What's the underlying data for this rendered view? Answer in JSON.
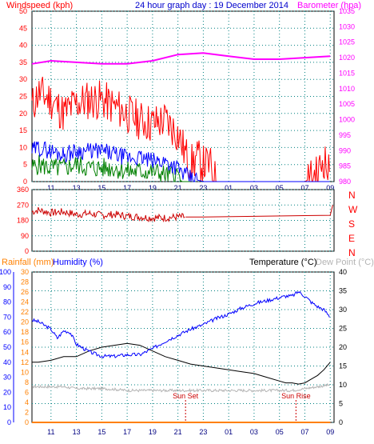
{
  "colors": {
    "windspeed": "#ff0000",
    "gust": "#ff0000",
    "avg_wind": "#0000ff",
    "wind_low": "#008000",
    "barometer": "#ff00ff",
    "direction": "#cc0000",
    "humidity": "#0000ff",
    "temperature": "#000000",
    "dew_point": "#b4b4b4",
    "rainfall": "#ff8000",
    "rainfall_axis": "#ff8000",
    "humidity_axis": "#0000ff",
    "direction_axis": "#ff0000",
    "sun_marker": "#cc0000",
    "grid": "#008080"
  },
  "chart_data": [
    {
      "type": "line",
      "panel": "wind",
      "title": "24 hour graph day : 19 December 2014",
      "ylabel_left": "Windspeed (kph)",
      "ylabel_right": "Barometer (hpa)",
      "x_ticks": [
        "11",
        "13",
        "15",
        "17",
        "19",
        "21",
        "23",
        "01",
        "03",
        "05",
        "07",
        "09"
      ],
      "y_left_ticks": [
        "0",
        "5",
        "10",
        "15",
        "20",
        "25",
        "30",
        "35",
        "40",
        "45",
        "50"
      ],
      "y_left_range": [
        0,
        50
      ],
      "y_right_ticks": [
        "980",
        "985",
        "990",
        "995",
        "1000",
        "1005",
        "1010",
        "1015",
        "1020",
        "1025",
        "1030",
        "1035"
      ],
      "y_right_range": [
        980,
        1035
      ],
      "grid": true,
      "series": [
        {
          "key": "gust",
          "hours": [
            9.5,
            10,
            11,
            12,
            13,
            14,
            15,
            16,
            17,
            18,
            19,
            20,
            21,
            21.6,
            22,
            22.5,
            23,
            23.5,
            24,
            25,
            26,
            27,
            28,
            29,
            30,
            31,
            32,
            32.5,
            33
          ],
          "values": [
            22,
            26,
            24,
            20,
            23,
            24,
            24,
            22,
            20,
            18,
            17,
            18,
            14,
            8,
            5,
            7,
            5,
            5,
            0,
            0,
            0,
            0,
            0,
            0,
            0,
            0,
            2,
            7,
            1
          ]
        },
        {
          "key": "avg_wind",
          "hours": [
            9.5,
            10,
            11,
            12,
            13,
            14,
            15,
            16,
            17,
            18,
            19,
            20,
            21,
            21.5,
            22,
            22.5,
            23,
            24,
            33
          ],
          "values": [
            9,
            10,
            9,
            8,
            9,
            9,
            9,
            8,
            7,
            7,
            6,
            6,
            4,
            2,
            1,
            0.5,
            0,
            0,
            0
          ]
        },
        {
          "key": "wind_low",
          "hours": [
            9.5,
            10,
            11,
            12,
            13,
            14,
            15,
            16,
            17,
            18,
            19,
            20,
            21,
            21.3,
            22
          ],
          "values": [
            4,
            5,
            4,
            4,
            5,
            4,
            4,
            4,
            3,
            3,
            3,
            2,
            2,
            0,
            0
          ]
        },
        {
          "key": "barometer",
          "axis": "right",
          "hours": [
            9.5,
            11,
            13,
            15,
            17,
            19,
            21,
            23,
            25,
            27,
            29,
            31,
            33
          ],
          "values": [
            1018,
            1019,
            1018.5,
            1018,
            1018,
            1019,
            1021,
            1021.5,
            1020.5,
            1019.5,
            1019.5,
            1020,
            1020.5
          ]
        }
      ]
    },
    {
      "type": "line",
      "panel": "direction",
      "y_ticks": [
        "0",
        "90",
        "180",
        "270",
        "360"
      ],
      "y_range": [
        0,
        360
      ],
      "compass_labels": [
        "N",
        "W",
        "S",
        "E",
        "N"
      ],
      "x_ticks": [
        "11",
        "13",
        "15",
        "17",
        "19",
        "21",
        "23",
        "01",
        "03",
        "05",
        "07",
        "09"
      ],
      "series": [
        {
          "key": "direction",
          "hours": [
            9.5,
            10,
            11,
            12,
            13,
            14,
            15,
            16,
            17,
            18,
            19,
            20,
            21,
            21.6,
            23,
            33,
            33.2
          ],
          "values": [
            230,
            240,
            225,
            230,
            215,
            220,
            210,
            215,
            205,
            200,
            195,
            195,
            200,
            200,
            200,
            210,
            270
          ]
        }
      ]
    },
    {
      "type": "line",
      "panel": "temperature",
      "ylabel_rainfall": "Rainfall (mm)",
      "ylabel_humidity": "Humidity (%)",
      "ylabel_temperature": "Temperature (°C)",
      "ylabel_dew_point": "Dew Point (°C)",
      "x_ticks": [
        "11",
        "13",
        "15",
        "17",
        "19",
        "21",
        "23",
        "01",
        "03",
        "05",
        "07",
        "09"
      ],
      "humidity_ticks": [
        "0",
        "10",
        "20",
        "30",
        "40",
        "50",
        "60",
        "70",
        "80",
        "90",
        "100"
      ],
      "humidity_range": [
        0,
        100
      ],
      "rainfall_ticks": [
        "0",
        "2",
        "4",
        "6",
        "8",
        "10",
        "12",
        "14",
        "16",
        "18",
        "20",
        "22",
        "24",
        "26",
        "28",
        "30"
      ],
      "rainfall_range": [
        0,
        30
      ],
      "temperature_ticks": [
        "0",
        "5",
        "10",
        "15",
        "20",
        "25",
        "30",
        "35",
        "40"
      ],
      "temperature_range": [
        0,
        40
      ],
      "annotations": [
        {
          "text": "Sun Set",
          "hour": 21.6
        },
        {
          "text": "Sun Rise",
          "hour": 30.3
        }
      ],
      "series": [
        {
          "key": "humidity",
          "axis": "humidity",
          "hours": [
            9.5,
            10,
            11,
            11.5,
            12,
            12.5,
            13,
            14,
            15,
            16,
            17,
            18,
            19,
            20,
            21,
            22,
            23,
            24,
            25,
            26,
            27,
            28,
            29,
            29.5,
            30,
            30.5,
            31,
            31.5,
            32,
            32.5,
            33
          ],
          "values": [
            68,
            67,
            62,
            56,
            61,
            60,
            52,
            47,
            44,
            44,
            45,
            45,
            49,
            54,
            58,
            62,
            65,
            69,
            72,
            76,
            79,
            81,
            83,
            84,
            84,
            87,
            84,
            80,
            77,
            75,
            70
          ]
        },
        {
          "key": "temperature",
          "axis": "temperature",
          "hours": [
            9.5,
            10,
            11,
            12,
            13,
            14,
            15,
            16,
            17,
            18,
            19,
            20,
            21,
            22,
            23,
            24,
            25,
            26,
            27,
            28,
            29,
            29.5,
            30,
            30.5,
            31,
            31.5,
            32,
            32.5,
            33
          ],
          "values": [
            16,
            16,
            16.5,
            17.5,
            17.5,
            19,
            20,
            20.5,
            21,
            20.5,
            19,
            17.5,
            16.5,
            15.5,
            15,
            14.5,
            14,
            13.5,
            13,
            12,
            11,
            10.5,
            10.5,
            10.2,
            10.5,
            11.5,
            12.5,
            14,
            16
          ]
        },
        {
          "key": "dew_point",
          "axis": "temperature",
          "hours": [
            9.5,
            10,
            11,
            12,
            13,
            14,
            15,
            16,
            17,
            18,
            19,
            20,
            21,
            22,
            23,
            24,
            25,
            26,
            27,
            28,
            29,
            30,
            31,
            32,
            33
          ],
          "values": [
            9.5,
            9.5,
            9.5,
            9.5,
            9,
            9,
            9,
            8.8,
            8.5,
            8.5,
            8.5,
            8.5,
            8.5,
            8.5,
            8.5,
            8.5,
            8.5,
            8.5,
            8.5,
            8.5,
            8.5,
            8.5,
            9,
            9.5,
            10
          ]
        },
        {
          "key": "rainfall",
          "axis": "rainfall",
          "hours": [
            9.5,
            33
          ],
          "values": [
            0,
            0
          ]
        }
      ]
    }
  ]
}
